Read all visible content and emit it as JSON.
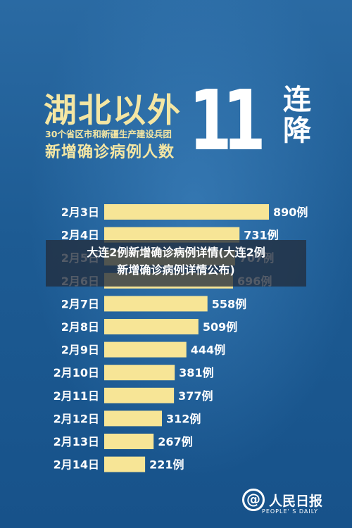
{
  "header": {
    "title": "湖北以外",
    "subtitle": "30个省区市和新疆生产建设兵团",
    "line3": "新增确诊病例人数",
    "streak_number": "11",
    "streak_text": "连降"
  },
  "overlay": {
    "line1": "大连2例新增确诊病例详情(大连2例",
    "line2": "新增确诊病例详情公布)"
  },
  "logo": {
    "name": "人民日报",
    "mark": "@",
    "english": "PEOPLE' S DAILY"
  },
  "colors": {
    "bar": "#f7e596",
    "text_light": "#f4e6a3",
    "background": "#1f5c93"
  },
  "chart_data": {
    "type": "bar",
    "orientation": "horizontal",
    "categories": [
      "2月3日",
      "2月4日",
      "2月5日",
      "2月6日",
      "2月7日",
      "2月8日",
      "2月9日",
      "2月10日",
      "2月11日",
      "2月12日",
      "2月13日",
      "2月14日"
    ],
    "values": [
      890,
      731,
      707,
      696,
      558,
      509,
      444,
      381,
      377,
      312,
      267,
      221
    ],
    "value_labels": [
      "890例",
      "731例",
      "707例",
      "696例",
      "558例",
      "509例",
      "444例",
      "381例",
      "377例",
      "312例",
      "267例",
      "221例"
    ],
    "unit": "例",
    "xlim": [
      0,
      890
    ]
  }
}
